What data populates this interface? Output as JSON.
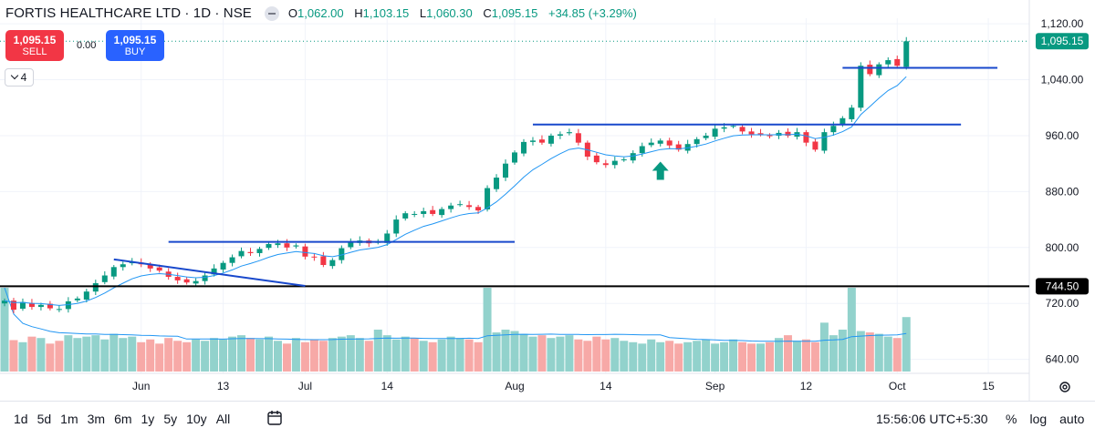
{
  "header": {
    "symbol": "FORTIS HEALTHCARE LTD · 1D · NSE",
    "open_label": "O",
    "open": "1,062.00",
    "high_label": "H",
    "high": "1,103.15",
    "low_label": "L",
    "low": "1,060.30",
    "close_label": "C",
    "close": "1,095.15",
    "change": "+34.85 (+3.29%)"
  },
  "trade": {
    "sell_price": "1,095.15",
    "sell_label": "SELL",
    "spread": "0.00",
    "buy_price": "1,095.15",
    "buy_label": "BUY"
  },
  "indicators_count": "4",
  "bottom": {
    "ranges": [
      "1d",
      "5d",
      "1m",
      "3m",
      "6m",
      "1y",
      "5y",
      "10y",
      "All"
    ],
    "clock": "15:56:06 UTC+5:30",
    "options": [
      "%",
      "log",
      "auto"
    ]
  },
  "colors": {
    "up": "#089981",
    "down": "#f23645",
    "vol_up": "#92d2cc",
    "vol_down": "#f7a9a7",
    "ma": "#2196f3",
    "level_line": "#1848cc",
    "price_tag": "#089981"
  },
  "chart_data": {
    "type": "candlestick",
    "y_ticks": [
      640,
      720,
      800,
      880,
      960,
      1040,
      1120
    ],
    "y_tick_labels": [
      "640.00",
      "720.00",
      "800.00",
      "880.00",
      "960.00",
      "1,040.00",
      "1,120.00"
    ],
    "ylim": [
      620,
      1128
    ],
    "x_labels": [
      {
        "index": 15,
        "label": "Jun"
      },
      {
        "index": 24,
        "label": "13"
      },
      {
        "index": 33,
        "label": "Jul"
      },
      {
        "index": 42,
        "label": "14"
      },
      {
        "index": 56,
        "label": "Aug"
      },
      {
        "index": 66,
        "label": "14"
      },
      {
        "index": 78,
        "label": "Sep"
      },
      {
        "index": 88,
        "label": "12"
      },
      {
        "index": 98,
        "label": "Oct"
      },
      {
        "index": 108,
        "label": "15"
      }
    ],
    "x_index_range": [
      -0.5,
      112.5
    ],
    "closes": [
      724,
      711,
      722,
      715,
      718,
      713,
      712,
      723,
      727,
      737,
      749,
      760,
      772,
      776,
      780,
      776,
      770,
      767,
      758,
      753,
      750,
      752,
      760,
      770,
      778,
      786,
      795,
      792,
      798,
      805,
      806,
      800,
      803,
      787,
      786,
      775,
      782,
      799,
      808,
      810,
      806,
      808,
      820,
      840,
      849,
      848,
      852,
      848,
      855,
      860,
      862,
      858,
      853,
      885,
      900,
      920,
      936,
      951,
      953,
      950,
      960,
      962,
      965,
      950,
      930,
      922,
      918,
      924,
      926,
      935,
      945,
      950,
      953,
      946,
      940,
      948,
      955,
      960,
      970,
      972,
      974,
      966,
      962,
      962,
      960,
      964,
      960,
      965,
      950,
      940,
      965,
      974,
      985,
      1000,
      1060,
      1048,
      1062,
      1068,
      1060,
      1095
    ],
    "volume_closes_note": "volume bars shown relative",
    "volumes": [
      120,
      45,
      42,
      50,
      48,
      40,
      44,
      52,
      48,
      50,
      52,
      46,
      54,
      48,
      50,
      42,
      46,
      40,
      48,
      44,
      42,
      46,
      44,
      48,
      46,
      50,
      52,
      48,
      46,
      50,
      44,
      40,
      48,
      42,
      46,
      44,
      48,
      50,
      52,
      48,
      44,
      60,
      52,
      46,
      50,
      48,
      44,
      42,
      46,
      50,
      48,
      46,
      42,
      120,
      56,
      60,
      58,
      54,
      50,
      52,
      48,
      50,
      52,
      46,
      44,
      50,
      46,
      48,
      44,
      42,
      40,
      46,
      42,
      44,
      40,
      42,
      44,
      46,
      40,
      42,
      46,
      42,
      40,
      40,
      42,
      48,
      52,
      44,
      46,
      42,
      70,
      52,
      60,
      120,
      58,
      56,
      54,
      50,
      48,
      78
    ],
    "ma_note": "moving average overlay",
    "horizontal_levels": [
      {
        "value": 808,
        "from_index": 18,
        "to_index": 56,
        "color": "#1848cc"
      },
      {
        "value": 976,
        "from_index": 58,
        "to_index": 105,
        "color": "#1848cc"
      },
      {
        "value": 1057,
        "from_index": 92,
        "to_index": 109,
        "color": "#1848cc"
      },
      {
        "value": 744.5,
        "from_index": -0.5,
        "to_index": 112.5,
        "color": "#000000"
      }
    ],
    "trend_line": {
      "from": [
        12,
        783
      ],
      "to": [
        33,
        745
      ]
    },
    "price_tags": [
      {
        "value": 1095.15,
        "label": "1,095.15",
        "color": "#089981"
      },
      {
        "value": 744.5,
        "label": "744.50",
        "color": "#000000"
      }
    ],
    "arrow_marker": {
      "index": 72,
      "value": 902,
      "color": "#089981"
    }
  }
}
